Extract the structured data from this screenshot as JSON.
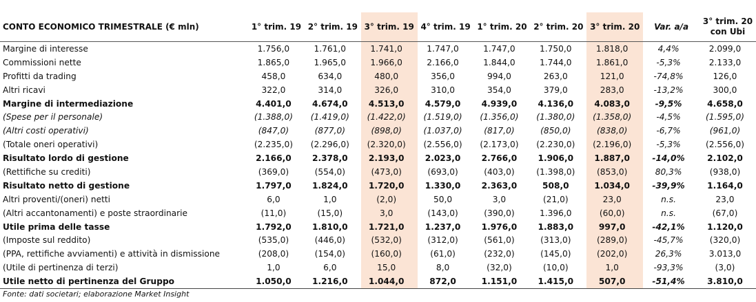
{
  "table": {
    "columns": [
      "CONTO ECONOMICO TRIMESTRALE (€ mln)",
      "1° trim. 19",
      "2° trim. 19",
      "3° trim. 19",
      "4° trim. 19",
      "1° trim. 20",
      "2° trim. 20",
      "3° trim. 20",
      "Var. a/a",
      "3° trim. 20 con Ubi"
    ],
    "rows": [
      [
        "Margine di interesse",
        "1.756,0",
        "1.761,0",
        "1.741,0",
        "1.747,0",
        "1.747,0",
        "1.750,0",
        "1.818,0",
        "4,4%",
        "2.099,0"
      ],
      [
        "Commissioni nette",
        "1.865,0",
        "1.965,0",
        "1.966,0",
        "2.166,0",
        "1.844,0",
        "1.744,0",
        "1.861,0",
        "-5,3%",
        "2.133,0"
      ],
      [
        "Profitti da trading",
        "458,0",
        "634,0",
        "480,0",
        "356,0",
        "994,0",
        "263,0",
        "121,0",
        "-74,8%",
        "126,0"
      ],
      [
        "Altri ricavi",
        "322,0",
        "314,0",
        "326,0",
        "310,0",
        "354,0",
        "379,0",
        "283,0",
        "-13,2%",
        "300,0"
      ],
      [
        "Margine di intermediazione",
        "4.401,0",
        "4.674,0",
        "4.513,0",
        "4.579,0",
        "4.939,0",
        "4.136,0",
        "4.083,0",
        "-9,5%",
        "4.658,0"
      ],
      [
        "(Spese per il personale)",
        "(1.388,0)",
        "(1.419,0)",
        "(1.422,0)",
        "(1.519,0)",
        "(1.356,0)",
        "(1.380,0)",
        "(1.358,0)",
        "-4,5%",
        "(1.595,0)"
      ],
      [
        "(Altri costi operativi)",
        "(847,0)",
        "(877,0)",
        "(898,0)",
        "(1.037,0)",
        "(817,0)",
        "(850,0)",
        "(838,0)",
        "-6,7%",
        "(961,0)"
      ],
      [
        "(Totale oneri operativi)",
        "(2.235,0)",
        "(2.296,0)",
        "(2.320,0)",
        "(2.556,0)",
        "(2.173,0)",
        "(2.230,0)",
        "(2.196,0)",
        "-5,3%",
        "(2.556,0)"
      ],
      [
        "Risultato lordo di gestione",
        "2.166,0",
        "2.378,0",
        "2.193,0",
        "2.023,0",
        "2.766,0",
        "1.906,0",
        "1.887,0",
        "-14,0%",
        "2.102,0"
      ],
      [
        "(Rettifiche su crediti)",
        "(369,0)",
        "(554,0)",
        "(473,0)",
        "(693,0)",
        "(403,0)",
        "(1.398,0)",
        "(853,0)",
        "80,3%",
        "(938,0)"
      ],
      [
        "Risultato netto di gestione",
        "1.797,0",
        "1.824,0",
        "1.720,0",
        "1.330,0",
        "2.363,0",
        "508,0",
        "1.034,0",
        "-39,9%",
        "1.164,0"
      ],
      [
        "Altri proventi/(oneri) netti",
        "6,0",
        "1,0",
        "(2,0)",
        "50,0",
        "3,0",
        "(21,0)",
        "23,0",
        "n.s.",
        "23,0"
      ],
      [
        "(Altri accantonamenti) e poste straordinarie",
        "(11,0)",
        "(15,0)",
        "3,0",
        "(143,0)",
        "(390,0)",
        "1.396,0",
        "(60,0)",
        "n.s.",
        "(67,0)"
      ],
      [
        "Utile prima delle tasse",
        "1.792,0",
        "1.810,0",
        "1.721,0",
        "1.237,0",
        "1.976,0",
        "1.883,0",
        "997,0",
        "-42,1%",
        "1.120,0"
      ],
      [
        "(Imposte sul reddito)",
        "(535,0)",
        "(446,0)",
        "(532,0)",
        "(312,0)",
        "(561,0)",
        "(313,0)",
        "(289,0)",
        "-45,7%",
        "(320,0)"
      ],
      [
        "(PPA, rettifiche avviamenti) e attività in dismissione",
        "(208,0)",
        "(154,0)",
        "(160,0)",
        "(61,0)",
        "(232,0)",
        "(145,0)",
        "(202,0)",
        "26,3%",
        "3.013,0"
      ],
      [
        "(Utile di pertinenza di terzi)",
        "1,0",
        "6,0",
        "15,0",
        "8,0",
        "(32,0)",
        "(10,0)",
        "1,0",
        "-93,3%",
        "(3,0)"
      ],
      [
        "Utile netto di pertinenza del Gruppo",
        "1.050,0",
        "1.216,0",
        "1.044,0",
        "872,0",
        "1.151,0",
        "1.415,0",
        "507,0",
        "-51,4%",
        "3.810,0"
      ]
    ]
  },
  "footer": {
    "source": "Fonte: dati societari; elaborazione Market Insight"
  }
}
